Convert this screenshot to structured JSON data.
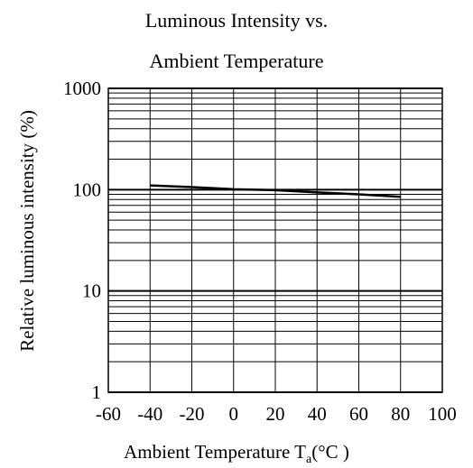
{
  "chart_data": {
    "type": "line",
    "title_line1": "Luminous Intensity vs.",
    "title_line2": "Ambient Temperature",
    "xlabel_prefix": "Ambient Temperature T",
    "xlabel_subscript": "a",
    "xlabel_suffix": "(°C )",
    "ylabel": "Relative luminous intensity (%)",
    "x_scale": "linear",
    "y_scale": "log",
    "xlim": [
      -60,
      100
    ],
    "ylim": [
      1,
      1000
    ],
    "x_ticks": [
      -60,
      -40,
      -20,
      0,
      20,
      40,
      60,
      80,
      100
    ],
    "x_tick_labels": [
      "-60",
      "-40",
      "-20",
      "0",
      "20",
      "40",
      "60",
      "80",
      "100"
    ],
    "y_ticks": [
      1,
      10,
      100,
      1000
    ],
    "y_tick_labels": [
      "1",
      "10",
      "100",
      "1000"
    ],
    "grid": true,
    "series": [
      {
        "color": "#000000",
        "x": [
          -40,
          -20,
          0,
          10,
          20,
          40,
          60,
          80
        ],
        "y": [
          110,
          106,
          101,
          100,
          99,
          94,
          90,
          85
        ]
      }
    ]
  }
}
